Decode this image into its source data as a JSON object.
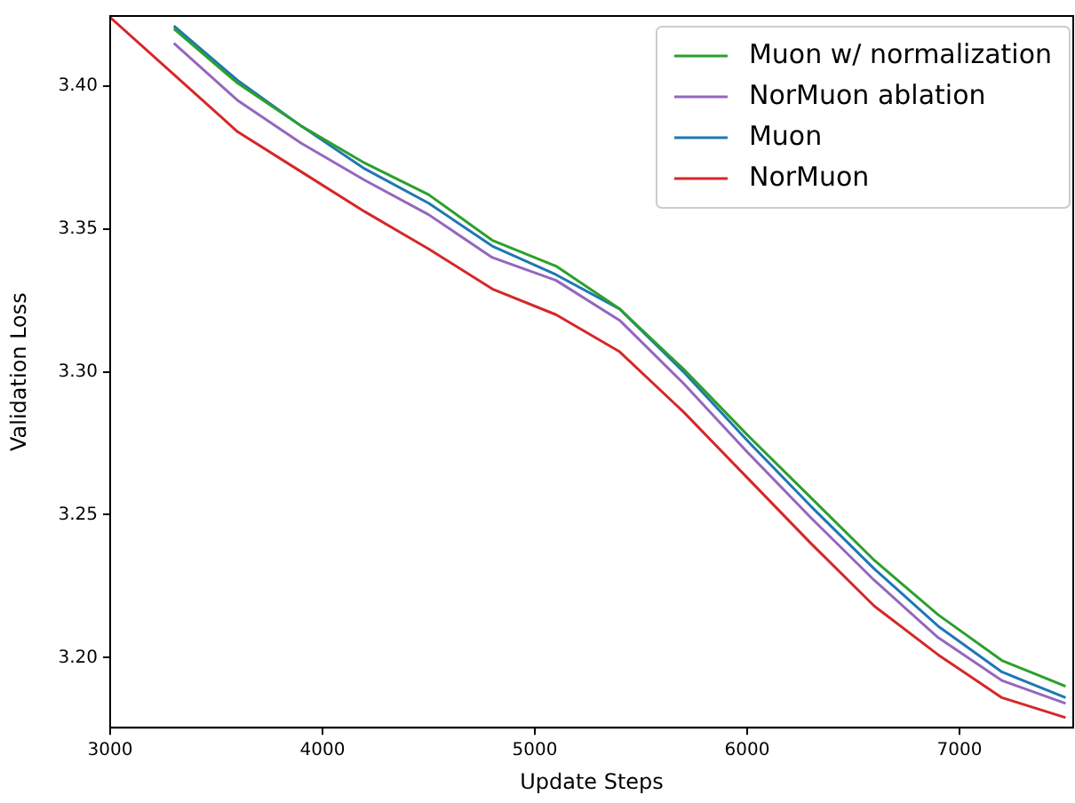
{
  "chart_data": {
    "type": "line",
    "xlabel": "Update Steps",
    "ylabel": "Validation Loss",
    "x": [
      3000,
      3300,
      3600,
      3900,
      4200,
      4500,
      4800,
      5100,
      5400,
      5700,
      6000,
      6300,
      6600,
      6900,
      7200,
      7500
    ],
    "series": [
      {
        "name": "Muon w/ normalization",
        "color": "#2ca02c",
        "values": [
          null,
          3.42,
          3.401,
          3.386,
          3.373,
          3.362,
          3.346,
          3.337,
          3.322,
          3.301,
          3.278,
          3.256,
          3.234,
          3.215,
          3.199,
          3.19
        ]
      },
      {
        "name": "NorMuon ablation",
        "color": "#9467bd",
        "values": [
          null,
          3.415,
          3.395,
          3.38,
          3.367,
          3.355,
          3.34,
          3.332,
          3.318,
          3.296,
          3.272,
          3.249,
          3.227,
          3.207,
          3.192,
          3.184
        ]
      },
      {
        "name": "Muon",
        "color": "#1f77b4",
        "values": [
          null,
          3.421,
          3.402,
          3.386,
          3.371,
          3.359,
          3.344,
          3.334,
          3.322,
          3.3,
          3.276,
          3.253,
          3.231,
          3.211,
          3.195,
          3.186
        ]
      },
      {
        "name": "NorMuon",
        "color": "#d62728",
        "values": [
          3.424,
          3.404,
          3.384,
          3.37,
          3.356,
          3.343,
          3.329,
          3.32,
          3.307,
          3.286,
          3.263,
          3.24,
          3.218,
          3.201,
          3.186,
          3.179
        ]
      }
    ],
    "xlim": [
      3000,
      7536
    ],
    "ylim": [
      3.1755,
      3.4245
    ],
    "xticks": [
      3000,
      4000,
      5000,
      6000,
      7000
    ],
    "yticks": [
      {
        "value": 3.2,
        "label": "3.20"
      },
      {
        "value": 3.25,
        "label": "3.25"
      },
      {
        "value": 3.3,
        "label": "3.30"
      },
      {
        "value": 3.35,
        "label": "3.35"
      },
      {
        "value": 3.4,
        "label": "3.40"
      }
    ],
    "grid": false,
    "legend": "top right",
    "marker": "none",
    "line_style": "solid"
  }
}
